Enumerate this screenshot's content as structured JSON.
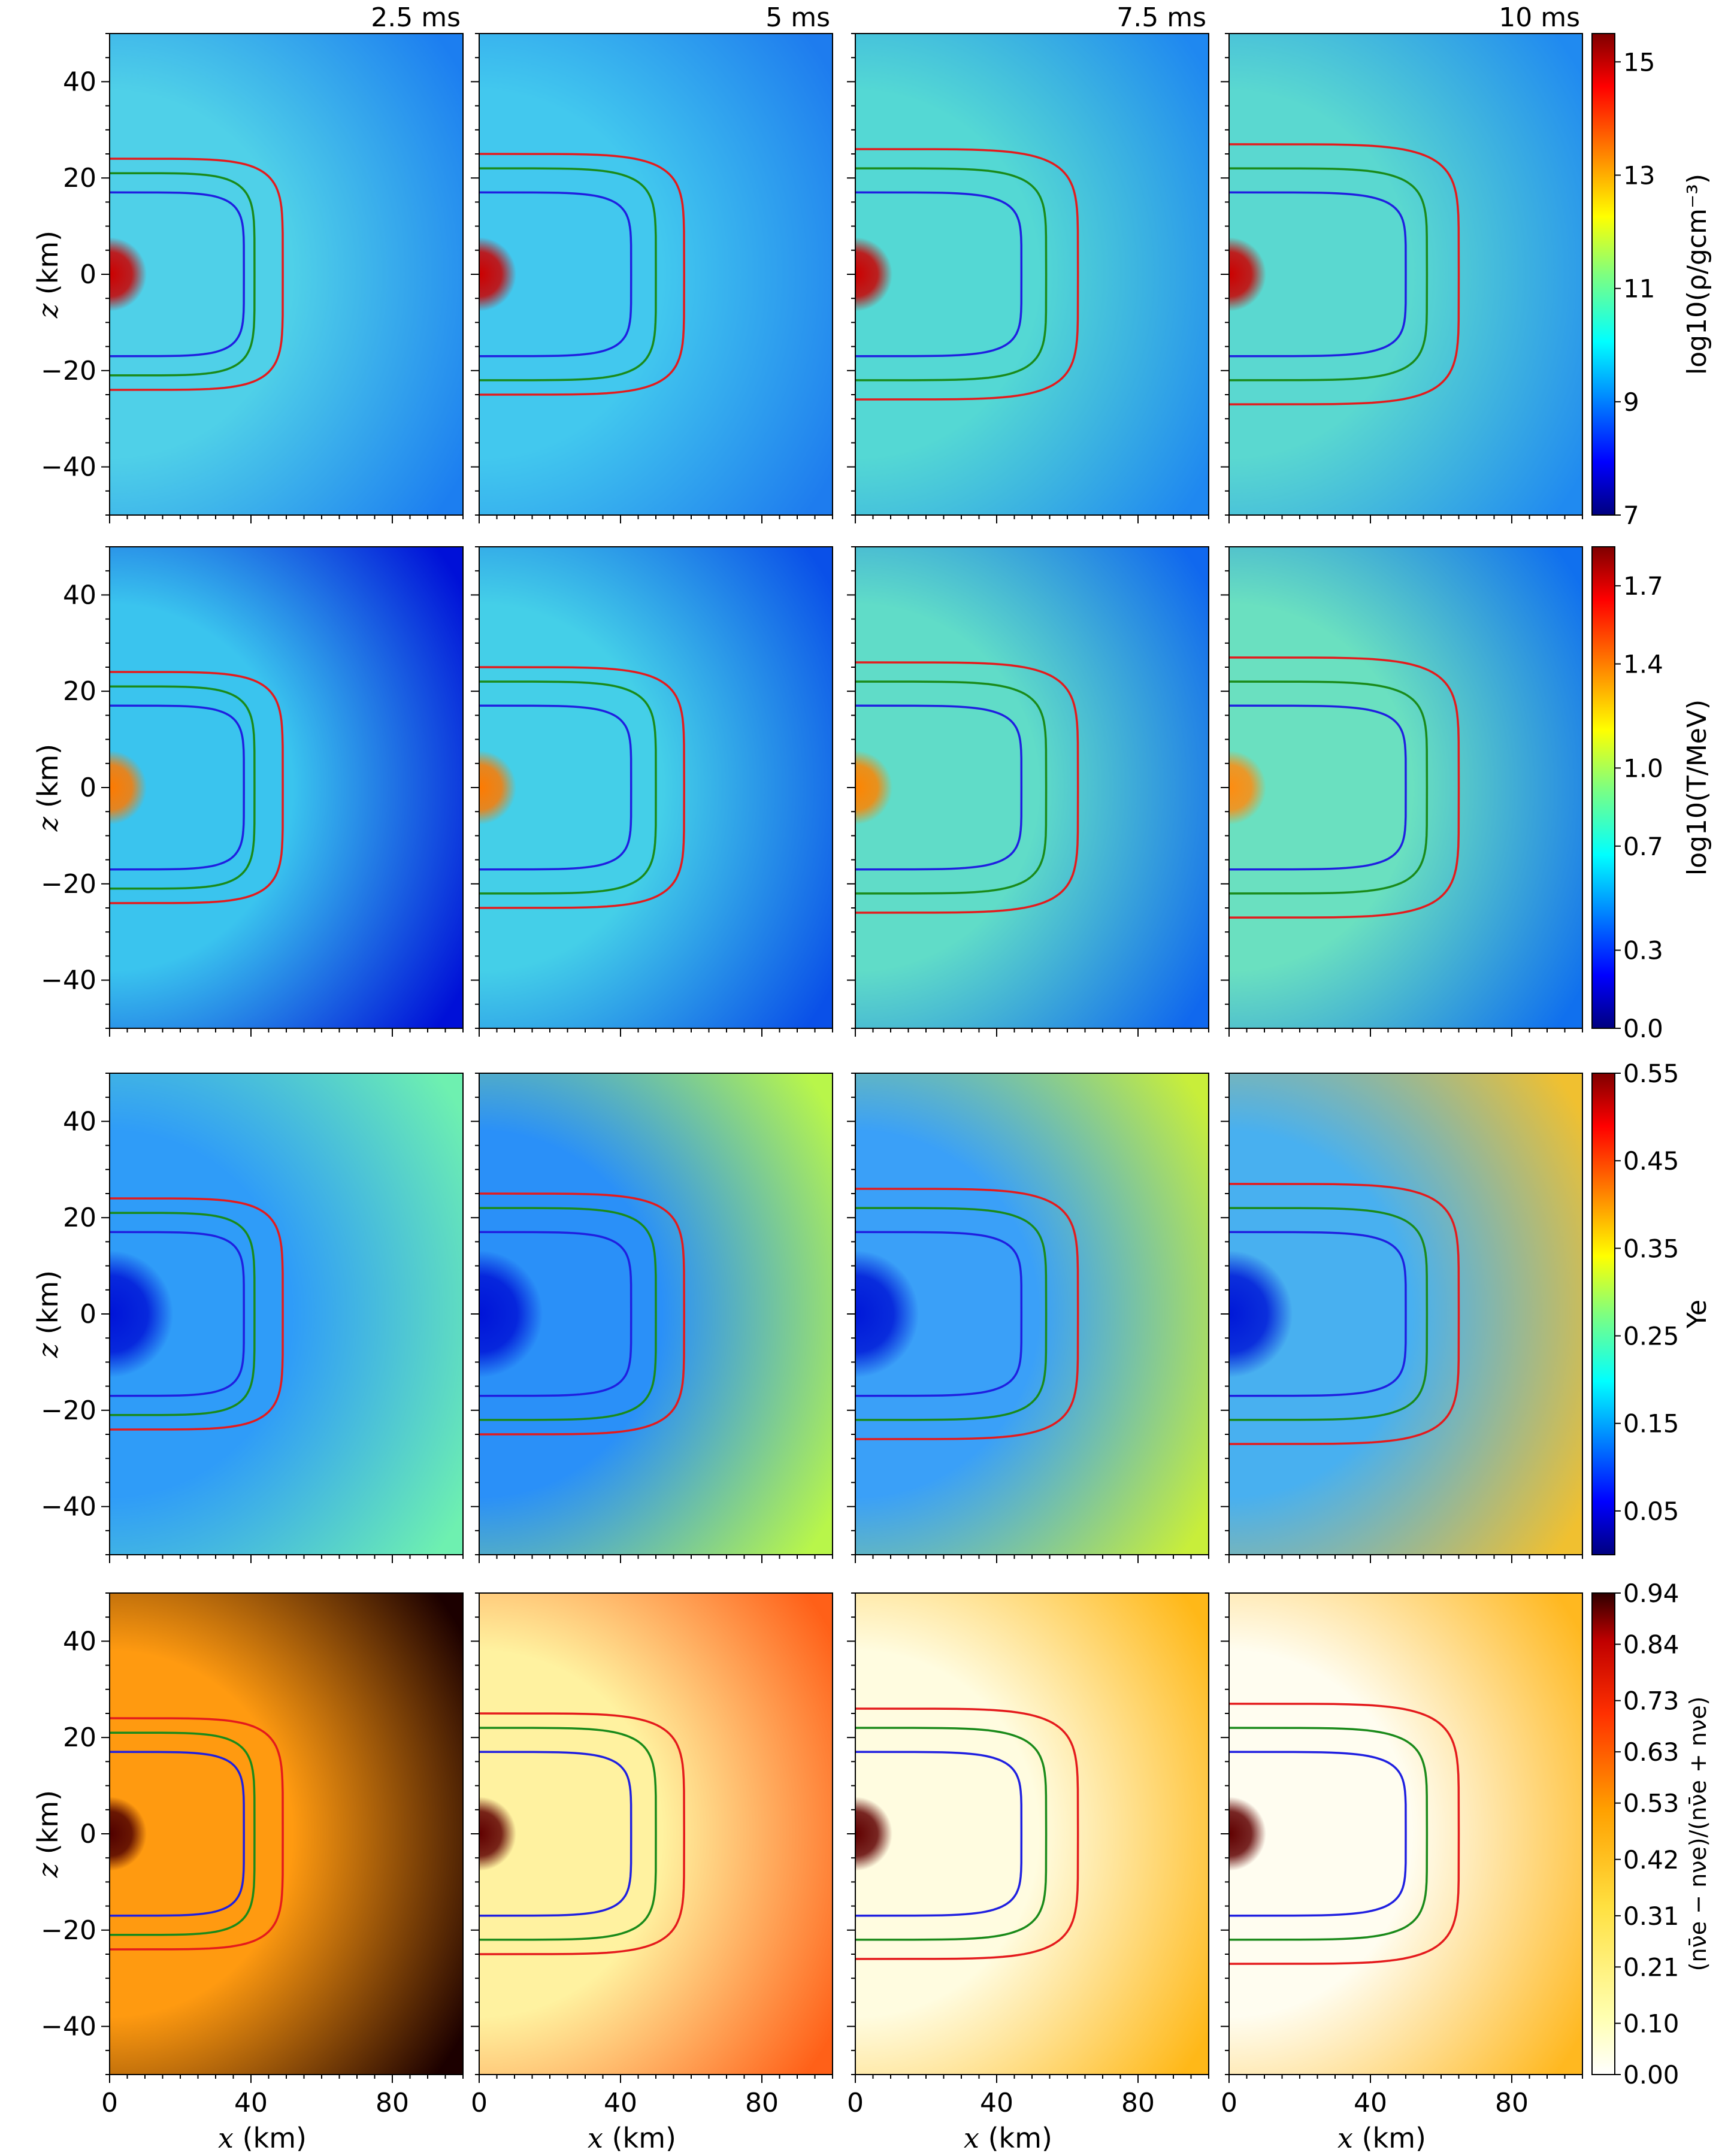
{
  "figure": {
    "times": [
      "2.5 ms",
      "5 ms",
      "7.5 ms",
      "10 ms"
    ],
    "x_axis_label": {
      "var": "x",
      "unit": " (km)"
    },
    "z_axis_label": {
      "var": "z",
      "unit": " (km)"
    },
    "x_range_km": [
      0,
      100
    ],
    "z_range_km": [
      -50,
      50
    ],
    "x_ticks": [
      "0",
      "40",
      "80"
    ],
    "z_ticks": [
      "40",
      "20",
      "0",
      "−20",
      "−40"
    ],
    "contour_colors": [
      "#e41a1c",
      "#1a8a1a",
      "#1f1fe0"
    ]
  },
  "chart_data": [
    {
      "type": "heatmap",
      "quantity": "density",
      "colorbar_label": "log10(ρ/gcm⁻³)",
      "colorbar_ticks": [
        "15",
        "13",
        "11",
        "9",
        "7"
      ],
      "colorbar_range": [
        7,
        15.5
      ],
      "colormap": "jet",
      "panels": [
        {
          "time": "2.5 ms",
          "contour_x_km": {
            "red": 49,
            "green": 41,
            "blue": 38
          },
          "contour_z_km": {
            "red": 24,
            "green": 21,
            "blue": 17
          }
        },
        {
          "time": "5 ms",
          "contour_x_km": {
            "red": 58,
            "green": 50,
            "blue": 43
          },
          "contour_z_km": {
            "red": 25,
            "green": 22,
            "blue": 17
          }
        },
        {
          "time": "7.5 ms",
          "contour_x_km": {
            "red": 63,
            "green": 54,
            "blue": 47
          },
          "contour_z_km": {
            "red": 26,
            "green": 22,
            "blue": 17
          }
        },
        {
          "time": "10 ms",
          "contour_x_km": {
            "red": 65,
            "green": 56,
            "blue": 50
          },
          "contour_z_km": {
            "red": 27,
            "green": 22,
            "blue": 17
          }
        }
      ]
    },
    {
      "type": "heatmap",
      "quantity": "temperature",
      "colorbar_label": "log10(T/MeV)",
      "colorbar_ticks": [
        "1.7",
        "1.4",
        "1.0",
        "0.7",
        "0.3",
        "0.0"
      ],
      "colorbar_range": [
        0.0,
        1.85
      ],
      "colormap": "jet",
      "panels": [
        {
          "time": "2.5 ms"
        },
        {
          "time": "5 ms"
        },
        {
          "time": "7.5 ms"
        },
        {
          "time": "10 ms"
        }
      ]
    },
    {
      "type": "heatmap",
      "quantity": "electron fraction",
      "colorbar_label": "Ye",
      "colorbar_ticks": [
        "0.55",
        "0.45",
        "0.35",
        "0.25",
        "0.15",
        "0.05"
      ],
      "colorbar_range": [
        0.0,
        0.55
      ],
      "colormap": "jet",
      "panels": [
        {
          "time": "2.5 ms"
        },
        {
          "time": "5 ms"
        },
        {
          "time": "7.5 ms"
        },
        {
          "time": "10 ms"
        }
      ]
    },
    {
      "type": "heatmap",
      "quantity": "neutrino asymmetry",
      "colorbar_label": "(nν̄e − nνe)/(nν̄e + nνe)",
      "colorbar_ticks": [
        "0.94",
        "0.84",
        "0.73",
        "0.63",
        "0.53",
        "0.42",
        "0.31",
        "0.21",
        "0.10",
        "0.00"
      ],
      "colorbar_range": [
        0.0,
        0.94
      ],
      "colormap": "hot_r",
      "panels": [
        {
          "time": "2.5 ms"
        },
        {
          "time": "5 ms"
        },
        {
          "time": "7.5 ms"
        },
        {
          "time": "10 ms"
        }
      ]
    }
  ]
}
